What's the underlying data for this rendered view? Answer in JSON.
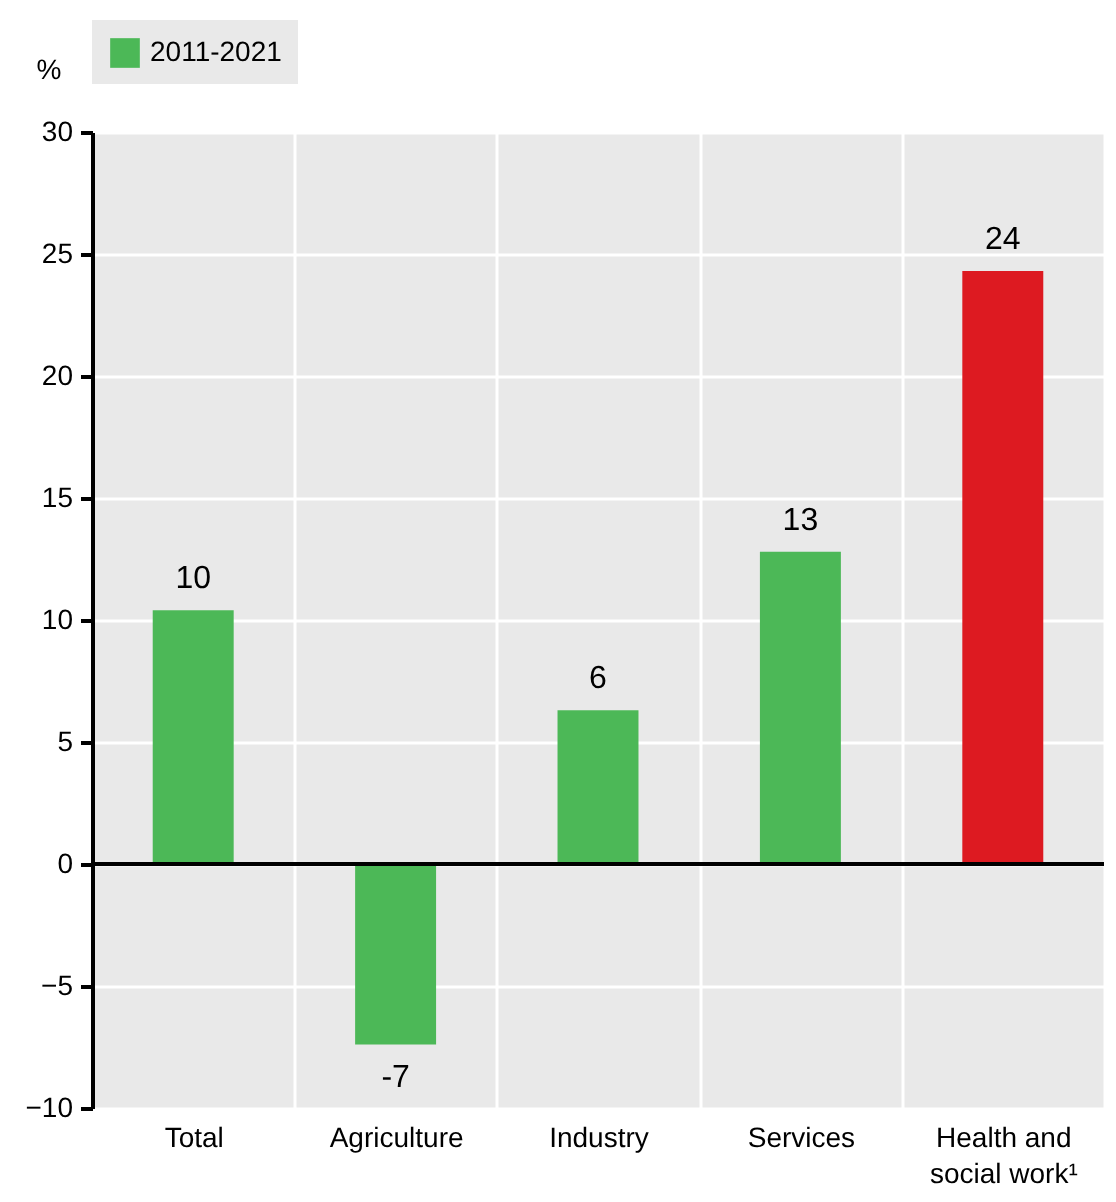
{
  "chart_data": {
    "type": "bar",
    "ylabel": "%",
    "categories": [
      "Total",
      "Agriculture",
      "Industry",
      "Services",
      "Health and social work¹"
    ],
    "series": [
      {
        "name": "2011-2021",
        "color": "#4cb857",
        "colors": [
          "#4cb857",
          "#4cb857",
          "#4cb857",
          "#4cb857",
          "#dd1a21"
        ],
        "values": [
          10.4,
          -7.4,
          6.3,
          12.8,
          24.3
        ],
        "value_labels": [
          "10",
          "-7",
          "6",
          "13",
          "24"
        ]
      }
    ],
    "ylim": [
      -10,
      30
    ],
    "yticks": [
      -10,
      -5,
      0,
      5,
      10,
      15,
      20,
      25,
      30
    ],
    "grid": true,
    "legend": "top"
  }
}
